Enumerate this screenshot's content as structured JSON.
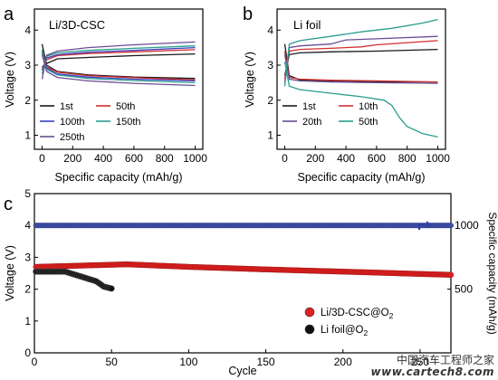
{
  "watermark": {
    "cn": "中国汽车工程师之家",
    "en": "www.cartech8.com"
  },
  "chart_data": [
    {
      "type": "line",
      "panel_label": "a",
      "annotation": "Li/3D-CSC",
      "xlabel": "Specific capacity (mAh/g)",
      "ylabel": "Voltage (V)",
      "xlim": [
        -50,
        1050
      ],
      "ylim": [
        0.6,
        4.6
      ],
      "xticks": [
        0,
        200,
        400,
        600,
        800,
        1000
      ],
      "yticks": [
        1,
        2,
        3,
        4
      ],
      "legend_position": "bottom-left",
      "series": [
        {
          "name": "1st",
          "color": "#1a1a1a",
          "charge": [
            [
              0,
              2.95
            ],
            [
              30,
              3.05
            ],
            [
              100,
              3.18
            ],
            [
              300,
              3.22
            ],
            [
              600,
              3.27
            ],
            [
              1000,
              3.32
            ]
          ],
          "discharge": [
            [
              0,
              3.6
            ],
            [
              30,
              3.0
            ],
            [
              100,
              2.82
            ],
            [
              300,
              2.72
            ],
            [
              600,
              2.66
            ],
            [
              1000,
              2.62
            ]
          ]
        },
        {
          "name": "50th",
          "color": "#d32f2f",
          "charge": [
            [
              0,
              2.9
            ],
            [
              30,
              3.15
            ],
            [
              100,
              3.27
            ],
            [
              300,
              3.33
            ],
            [
              600,
              3.38
            ],
            [
              1000,
              3.44
            ]
          ],
          "discharge": [
            [
              0,
              3.35
            ],
            [
              30,
              2.95
            ],
            [
              100,
              2.8
            ],
            [
              300,
              2.7
            ],
            [
              600,
              2.64
            ],
            [
              1000,
              2.58
            ]
          ]
        },
        {
          "name": "100th",
          "color": "#3f3fbf",
          "charge": [
            [
              0,
              2.85
            ],
            [
              30,
              3.2
            ],
            [
              100,
              3.3
            ],
            [
              300,
              3.37
            ],
            [
              600,
              3.42
            ],
            [
              1000,
              3.5
            ]
          ],
          "discharge": [
            [
              0,
              3.4
            ],
            [
              30,
              2.92
            ],
            [
              100,
              2.75
            ],
            [
              300,
              2.66
            ],
            [
              600,
              2.6
            ],
            [
              1000,
              2.55
            ]
          ]
        },
        {
          "name": "150th",
          "color": "#2a9d8f",
          "charge": [
            [
              0,
              2.75
            ],
            [
              30,
              3.25
            ],
            [
              100,
              3.35
            ],
            [
              300,
              3.42
            ],
            [
              600,
              3.48
            ],
            [
              1000,
              3.55
            ]
          ],
          "discharge": [
            [
              0,
              3.45
            ],
            [
              30,
              2.88
            ],
            [
              100,
              2.72
            ],
            [
              300,
              2.62
            ],
            [
              600,
              2.56
            ],
            [
              1000,
              2.5
            ]
          ]
        },
        {
          "name": "250th",
          "color": "#6a4c93",
          "charge": [
            [
              0,
              2.6
            ],
            [
              30,
              3.28
            ],
            [
              100,
              3.4
            ],
            [
              300,
              3.5
            ],
            [
              600,
              3.58
            ],
            [
              1000,
              3.66
            ]
          ],
          "discharge": [
            [
              0,
              3.3
            ],
            [
              30,
              2.82
            ],
            [
              100,
              2.65
            ],
            [
              300,
              2.55
            ],
            [
              600,
              2.48
            ],
            [
              1000,
              2.42
            ]
          ]
        }
      ]
    },
    {
      "type": "line",
      "panel_label": "b",
      "annotation": "Li foil",
      "xlabel": "Specific capacity (mAh/g)",
      "ylabel": "Voltage (V)",
      "xlim": [
        -50,
        1050
      ],
      "ylim": [
        0.6,
        4.6
      ],
      "xticks": [
        0,
        200,
        400,
        600,
        800,
        1000
      ],
      "yticks": [
        1,
        2,
        3,
        4
      ],
      "legend_position": "bottom-left",
      "series": [
        {
          "name": "1st",
          "color": "#1a1a1a",
          "charge": [
            [
              0,
              2.7
            ],
            [
              30,
              3.3
            ],
            [
              100,
              3.35
            ],
            [
              300,
              3.38
            ],
            [
              600,
              3.4
            ],
            [
              1000,
              3.45
            ]
          ],
          "discharge": [
            [
              0,
              3.6
            ],
            [
              30,
              2.7
            ],
            [
              100,
              2.58
            ],
            [
              300,
              2.55
            ],
            [
              600,
              2.53
            ],
            [
              1000,
              2.52
            ]
          ]
        },
        {
          "name": "10th",
          "color": "#d32f2f",
          "charge": [
            [
              0,
              2.6
            ],
            [
              30,
              3.4
            ],
            [
              100,
              3.45
            ],
            [
              300,
              3.48
            ],
            [
              500,
              3.52
            ],
            [
              600,
              3.58
            ],
            [
              1000,
              3.7
            ]
          ],
          "discharge": [
            [
              0,
              3.4
            ],
            [
              30,
              2.65
            ],
            [
              100,
              2.6
            ],
            [
              300,
              2.57
            ],
            [
              600,
              2.55
            ],
            [
              1000,
              2.52
            ]
          ]
        },
        {
          "name": "20th",
          "color": "#6a4c93",
          "charge": [
            [
              0,
              2.5
            ],
            [
              30,
              3.5
            ],
            [
              100,
              3.55
            ],
            [
              300,
              3.6
            ],
            [
              400,
              3.72
            ],
            [
              600,
              3.75
            ],
            [
              1000,
              3.82
            ]
          ],
          "discharge": [
            [
              0,
              3.3
            ],
            [
              30,
              2.6
            ],
            [
              100,
              2.55
            ],
            [
              300,
              2.52
            ],
            [
              600,
              2.5
            ],
            [
              1000,
              2.48
            ]
          ]
        },
        {
          "name": "50th",
          "color": "#2a9d8f",
          "charge": [
            [
              0,
              2.4
            ],
            [
              30,
              3.6
            ],
            [
              100,
              3.7
            ],
            [
              300,
              3.82
            ],
            [
              500,
              3.95
            ],
            [
              700,
              4.05
            ],
            [
              900,
              4.2
            ],
            [
              1000,
              4.3
            ]
          ],
          "discharge": [
            [
              0,
              3.1
            ],
            [
              30,
              2.4
            ],
            [
              100,
              2.3
            ],
            [
              300,
              2.2
            ],
            [
              500,
              2.1
            ],
            [
              650,
              2.0
            ],
            [
              700,
              1.85
            ],
            [
              750,
              1.5
            ],
            [
              800,
              1.25
            ],
            [
              900,
              1.05
            ],
            [
              1000,
              0.95
            ]
          ]
        }
      ]
    },
    {
      "type": "scatter",
      "panel_label": "c",
      "xlabel": "Cycle",
      "ylabel": "Voltage (V)",
      "y2label": "Specific capacity (mAh/g)",
      "xlim": [
        0,
        270
      ],
      "ylim": [
        0,
        5
      ],
      "y2lim": [
        0,
        1250
      ],
      "xticks": [
        0,
        50,
        100,
        150,
        200,
        250
      ],
      "yticks": [
        0,
        1,
        2,
        3,
        4,
        5
      ],
      "y2ticks": [
        500,
        1000
      ],
      "legend_position": "bottom-right",
      "series": [
        {
          "name": "Li/3D-CSC@O2",
          "color": "#e02020",
          "x_start": 1,
          "x_end": 270,
          "voltage_trend": [
            [
              1,
              2.7
            ],
            [
              60,
              2.78
            ],
            [
              100,
              2.7
            ],
            [
              150,
              2.62
            ],
            [
              200,
              2.55
            ],
            [
              270,
              2.45
            ]
          ]
        },
        {
          "name": "Li foil@O2",
          "color": "#111111",
          "x_start": 1,
          "x_end": 50,
          "voltage_trend": [
            [
              1,
              2.55
            ],
            [
              20,
              2.55
            ],
            [
              30,
              2.4
            ],
            [
              40,
              2.25
            ],
            [
              45,
              2.08
            ],
            [
              50,
              2.02
            ]
          ]
        },
        {
          "name": "Specific capacity",
          "color": "#4050a8",
          "axis": "right",
          "x_start": 1,
          "x_end": 270,
          "capacity_constant": 1000
        }
      ],
      "legend": [
        {
          "label_main": "Li/3D-CSC@O",
          "label_sub": "2",
          "color": "#e02020"
        },
        {
          "label_main": "Li foil@O",
          "label_sub": "2",
          "color": "#111111"
        }
      ]
    }
  ]
}
